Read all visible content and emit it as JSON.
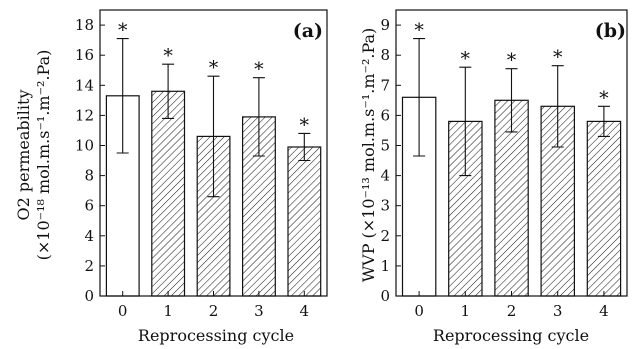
{
  "chart_data": [
    {
      "type": "bar",
      "panel_label": "(a)",
      "ylabel_line1": "O2 permeability",
      "ylabel_line2": "(×10⁻¹⁸ mol.m.s⁻¹.m⁻².Pa)",
      "xlabel": "Reprocessing cycle",
      "categories": [
        "0",
        "1",
        "2",
        "3",
        "4"
      ],
      "values": [
        13.3,
        13.6,
        10.6,
        11.9,
        9.9
      ],
      "errors": [
        3.8,
        1.8,
        4.0,
        2.6,
        0.9
      ],
      "annotations": [
        "*",
        "*",
        "*",
        "*",
        "*"
      ],
      "fill": [
        "open",
        "hatched",
        "hatched",
        "hatched",
        "hatched"
      ],
      "ylim": [
        0,
        19
      ],
      "yticks": [
        0,
        2,
        4,
        6,
        8,
        10,
        12,
        14,
        16,
        18
      ],
      "ytick_labels": [
        "0",
        "2",
        "4",
        "6",
        "8",
        "10",
        "12",
        "14",
        "16",
        "18"
      ],
      "grid": false
    },
    {
      "type": "bar",
      "panel_label": "(b)",
      "ylabel": "WVP (×10⁻¹³ mol.m.s⁻¹.m⁻².Pa)",
      "xlabel": "Reprocessing cycle",
      "categories": [
        "0",
        "1",
        "2",
        "3",
        "4"
      ],
      "values": [
        6.6,
        5.8,
        6.5,
        6.3,
        5.8
      ],
      "errors": [
        1.95,
        1.8,
        1.05,
        1.35,
        0.5
      ],
      "annotations": [
        "*",
        "*",
        "*",
        "*",
        "*"
      ],
      "fill": [
        "open",
        "hatched",
        "hatched",
        "hatched",
        "hatched"
      ],
      "ylim": [
        0,
        9.5
      ],
      "yticks": [
        0,
        1,
        2,
        3,
        4,
        5,
        6,
        7,
        8,
        9
      ],
      "ytick_labels": [
        "0",
        "1",
        "2",
        "3",
        "4",
        "5",
        "6",
        "7",
        "8",
        "9"
      ],
      "grid": false
    }
  ],
  "colors": {
    "ink": "#111111",
    "background": "#ffffff",
    "hatch": "#222222"
  }
}
